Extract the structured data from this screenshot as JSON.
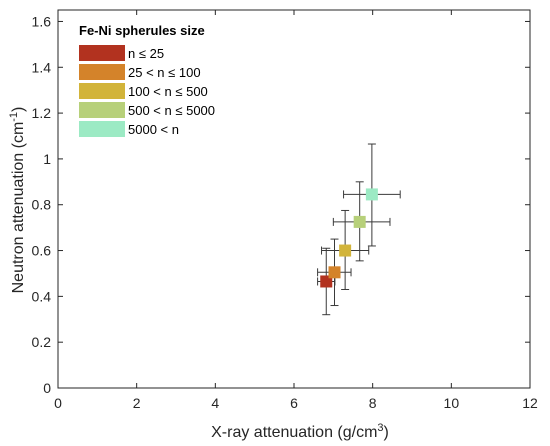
{
  "chart_data": {
    "type": "scatter",
    "xlabel": "X-ray attenuation (g/cm",
    "xlabel_sup": "3",
    "xlabel_end": ")",
    "ylabel": "Neutron attenuation (cm",
    "ylabel_sup": "-1",
    "ylabel_end": ")",
    "xlim": [
      0,
      12
    ],
    "ylim": [
      0,
      1.65
    ],
    "xticks": [
      0,
      2,
      4,
      6,
      8,
      10,
      12
    ],
    "yticks": [
      0,
      0.2,
      0.4,
      0.6,
      0.8,
      1,
      1.2,
      1.4,
      1.6
    ],
    "xtick_labels": [
      "0",
      "2",
      "4",
      "6",
      "8",
      "10",
      "12"
    ],
    "ytick_labels": [
      "0",
      "0.2",
      "0.4",
      "0.6",
      "0.8",
      "1",
      "1.2",
      "1.4",
      "1.6"
    ],
    "grid": false,
    "legend": {
      "title": "Fe-Ni spherules size",
      "placement": "top-left"
    },
    "series": [
      {
        "name": "n ≤ 25",
        "color": "#b2321f",
        "x": 6.82,
        "y": 0.465,
        "xerr": [
          0.22,
          0.22
        ],
        "yerr": [
          0.145,
          0.145
        ]
      },
      {
        "name": "25 < n ≤ 100",
        "color": "#d4832a",
        "x": 7.03,
        "y": 0.505,
        "xerr": [
          0.43,
          0.42
        ],
        "yerr": [
          0.145,
          0.145
        ]
      },
      {
        "name": "100 < n ≤ 500",
        "color": "#d2b43a",
        "x": 7.3,
        "y": 0.6,
        "xerr": [
          0.6,
          0.6
        ],
        "yerr": [
          0.17,
          0.175
        ]
      },
      {
        "name": "500 < n ≤ 5000",
        "color": "#b7d07a",
        "x": 7.67,
        "y": 0.725,
        "xerr": [
          0.67,
          0.77
        ],
        "yerr": [
          0.17,
          0.175
        ]
      },
      {
        "name": "5000 < n",
        "color": "#9ceac4",
        "x": 7.98,
        "y": 0.845,
        "xerr": [
          0.72,
          0.72
        ],
        "yerr": [
          0.225,
          0.22
        ]
      }
    ]
  }
}
